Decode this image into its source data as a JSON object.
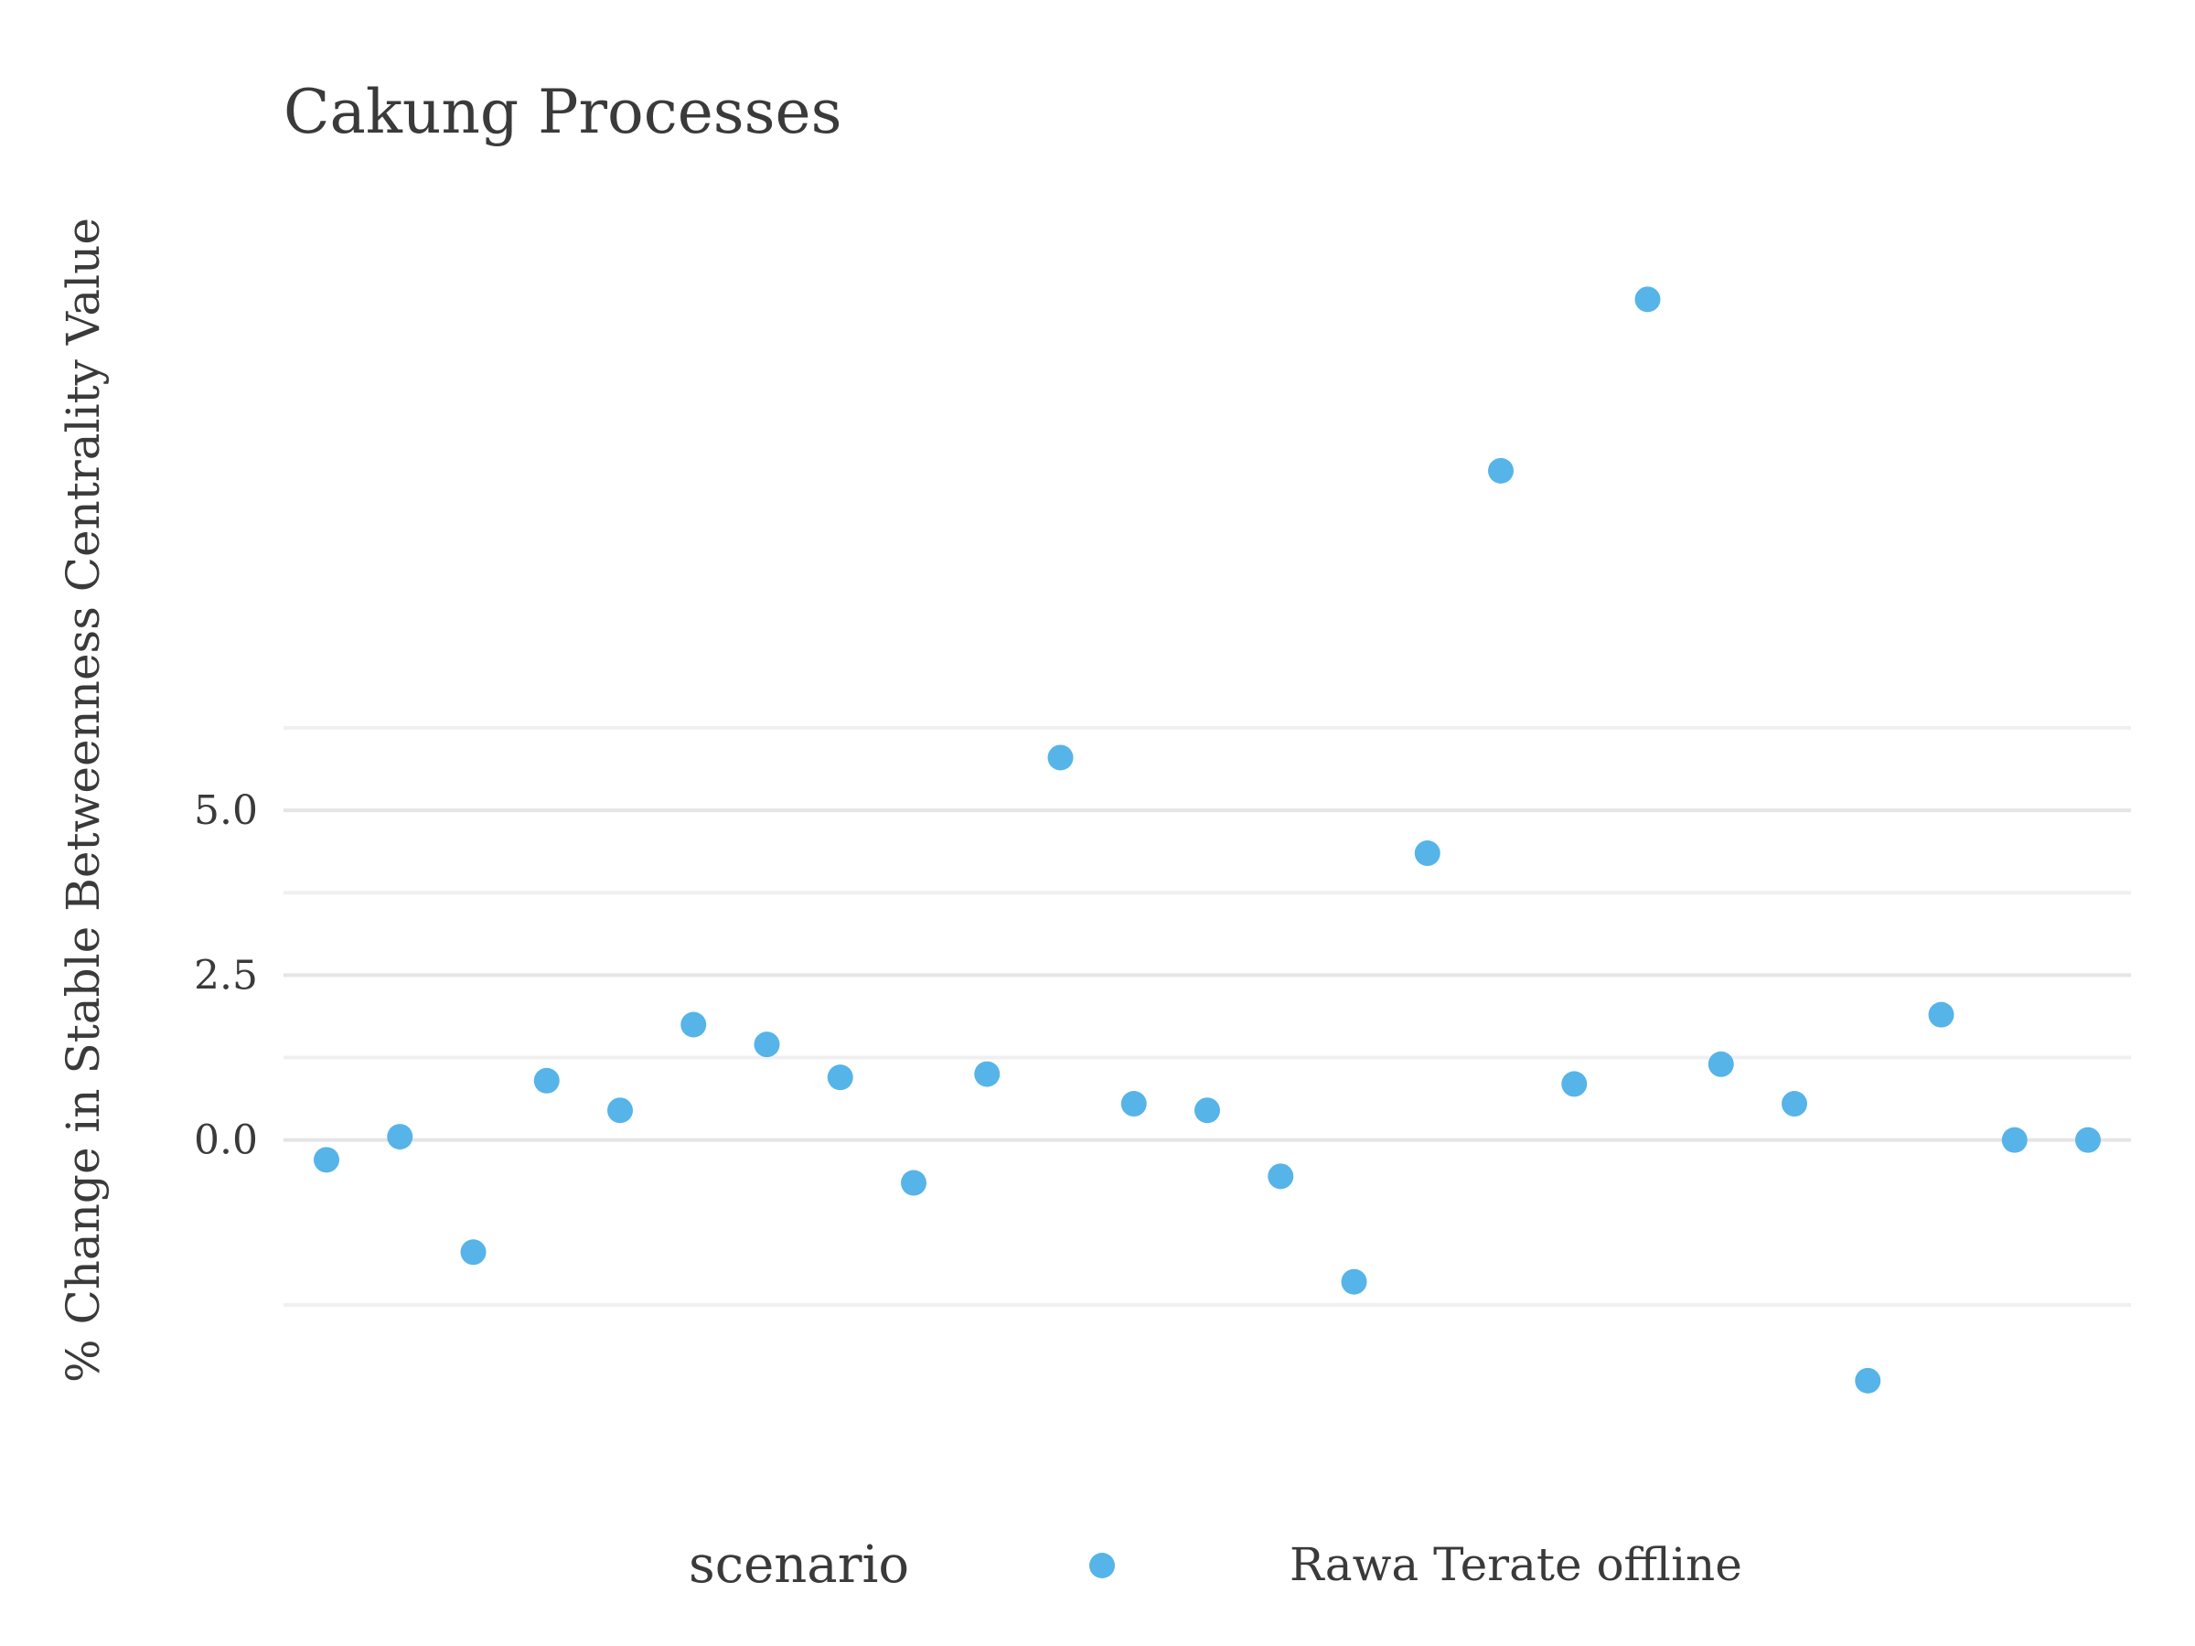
{
  "chart_data": {
    "type": "scatter",
    "title": "Cakung Processes",
    "xlabel": "",
    "ylabel": "% Change in Stable Betweenness Centrality Value",
    "x": [
      1,
      2,
      3,
      4,
      5,
      6,
      7,
      8,
      9,
      10,
      11,
      12,
      13,
      14,
      15,
      16,
      17,
      18,
      19,
      20,
      21,
      22,
      23,
      24,
      25
    ],
    "series": [
      {
        "name": "Rawa Terate offline",
        "color": "#56b4e9",
        "values": [
          -0.3,
          0.05,
          -1.7,
          0.9,
          0.45,
          1.75,
          1.45,
          0.95,
          -0.65,
          1.0,
          5.8,
          0.55,
          0.45,
          -0.55,
          -2.15,
          4.35,
          10.15,
          0.85,
          12.75,
          1.15,
          0.55,
          -3.65,
          1.9,
          0.0,
          0.0
        ]
      }
    ],
    "ylim": [
      -4.9,
      14.1
    ],
    "yticks": [
      0.0,
      2.5,
      5.0
    ],
    "ytick_labels": [
      "0.0",
      "2.5",
      "5.0"
    ],
    "minor_gridlines": [
      -2.5,
      1.25,
      3.75,
      6.25
    ],
    "grid": true,
    "legend": {
      "title": "scenario",
      "position": "bottom"
    }
  }
}
